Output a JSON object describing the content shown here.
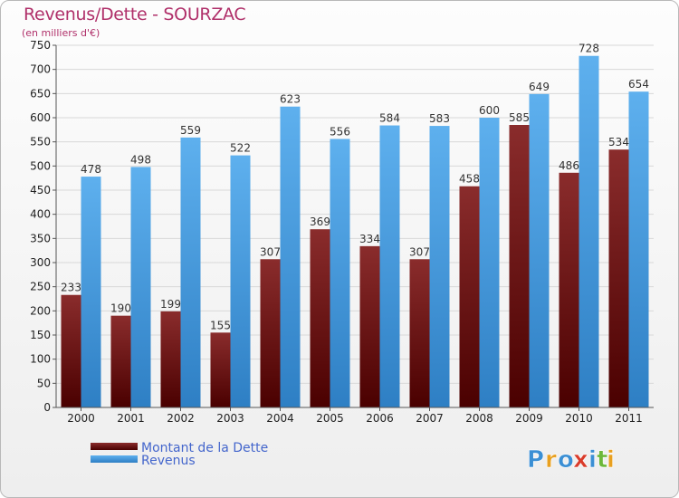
{
  "header": {
    "title": "Revenus/Dette - SOURZAC",
    "subtitle": "(en milliers d'€)"
  },
  "logo": {
    "text": "Proxiti",
    "letters": [
      "P",
      "r",
      "o",
      "x",
      "i",
      "t",
      "i"
    ],
    "colors": [
      "#3b8fd4",
      "#e8a020",
      "#3b8fd4",
      "#d93b2a",
      "#3b8fd4",
      "#6cb83a",
      "#e8a020"
    ]
  },
  "chart_data": {
    "type": "bar",
    "categories": [
      "2000",
      "2001",
      "2002",
      "2003",
      "2004",
      "2005",
      "2006",
      "2007",
      "2008",
      "2009",
      "2010",
      "2011"
    ],
    "series": [
      {
        "name": "Montant de la Dette",
        "values": [
          233,
          190,
          199,
          155,
          307,
          369,
          334,
          307,
          458,
          585,
          486,
          534
        ],
        "color": "#7a1a1a"
      },
      {
        "name": "Revenus",
        "values": [
          478,
          498,
          559,
          522,
          623,
          556,
          584,
          583,
          600,
          649,
          728,
          654
        ],
        "color": "#4ea2e0"
      }
    ],
    "ylim": [
      0,
      750
    ],
    "yticks": [
      0,
      50,
      100,
      150,
      200,
      250,
      300,
      350,
      400,
      450,
      500,
      550,
      600,
      650,
      700,
      750
    ],
    "grid": true,
    "legend_position": "bottom-left"
  }
}
